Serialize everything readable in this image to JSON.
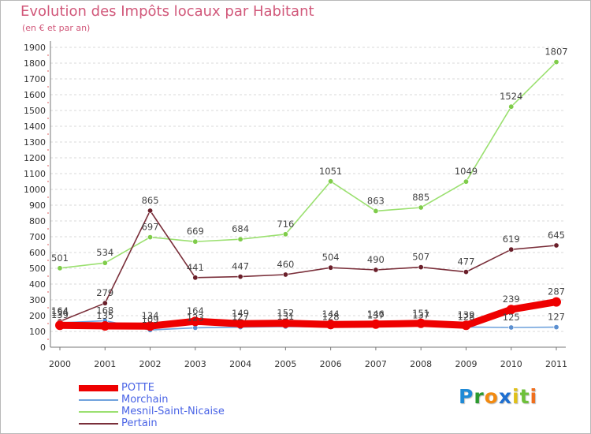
{
  "title": "Evolution des Impôts locaux par Habitant",
  "subtitle": "(en € et par an)",
  "logo": {
    "letters": [
      "P",
      "r",
      "o",
      "x",
      "i",
      "t",
      "i"
    ],
    "colors": [
      "#1f8ad6",
      "#2b9a2e",
      "#f28a10",
      "#1e6fd0",
      "#e0c019",
      "#6ec03a",
      "#f06e1c"
    ]
  },
  "chart_data": {
    "type": "line",
    "categories": [
      "2000",
      "2001",
      "2002",
      "2003",
      "2004",
      "2005",
      "2006",
      "2007",
      "2008",
      "2009",
      "2010",
      "2011"
    ],
    "ylim": [
      0,
      1900
    ],
    "yticks": [
      100,
      200,
      300,
      400,
      500,
      600,
      700,
      800,
      900,
      1000,
      1100,
      1200,
      1300,
      1400,
      1500,
      1600,
      1700,
      1800,
      1900
    ],
    "grid": "horizontal dashed",
    "series": [
      {
        "name": "Mesnil-Saint-Nicaise",
        "color": "#9be070",
        "dot": "#7fcc4a",
        "values": [
          501,
          534,
          697,
          669,
          684,
          716,
          1051,
          863,
          885,
          1049,
          1524,
          1807
        ]
      },
      {
        "name": "Pertain",
        "color": "#7a2f3a",
        "dot": "#6a1f2a",
        "values": [
          164,
          279,
          865,
          441,
          447,
          460,
          504,
          490,
          507,
          477,
          619,
          645
        ]
      },
      {
        "name": "Morchain",
        "color": "#6fa2dc",
        "dot": "#5b8fd0",
        "values": [
          154,
          168,
          109,
          123,
          127,
          131,
          128,
          137,
          137,
          128,
          125,
          127
        ]
      },
      {
        "name": "POTTE",
        "color": "#ee0000",
        "dot": "#ee0000",
        "values": [
          139,
          135,
          134,
          164,
          149,
          152,
          144,
          146,
          151,
          139,
          239,
          287
        ]
      }
    ],
    "legend": [
      "POTTE",
      "Morchain",
      "Mesnil-Saint-Nicaise",
      "Pertain"
    ]
  }
}
